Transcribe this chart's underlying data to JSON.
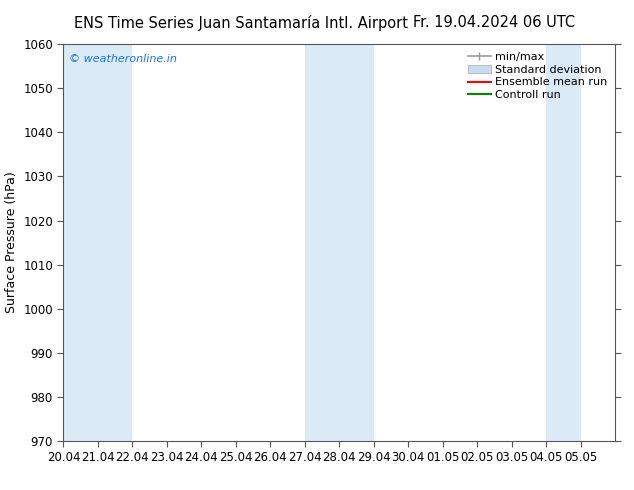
{
  "title_left": "ENS Time Series Juan Santamaría Intl. Airport",
  "title_right": "Fr. 19.04.2024 06 UTC",
  "ylabel": "Surface Pressure (hPa)",
  "ylim": [
    970,
    1060
  ],
  "yticks": [
    970,
    980,
    990,
    1000,
    1010,
    1020,
    1030,
    1040,
    1050,
    1060
  ],
  "xlim_left": 0,
  "xlim_right": 16,
  "xtick_labels": [
    "20.04",
    "21.04",
    "22.04",
    "23.04",
    "24.04",
    "25.04",
    "26.04",
    "27.04",
    "28.04",
    "29.04",
    "30.04",
    "01.05",
    "02.05",
    "03.05",
    "04.05",
    "05.05"
  ],
  "xtick_positions": [
    0,
    1,
    2,
    3,
    4,
    5,
    6,
    7,
    8,
    9,
    10,
    11,
    12,
    13,
    14,
    15
  ],
  "shaded_columns": [
    {
      "x_start": 0,
      "x_end": 1,
      "color": "#daeaf7"
    },
    {
      "x_start": 1,
      "x_end": 2,
      "color": "#daeaf7"
    },
    {
      "x_start": 7,
      "x_end": 8,
      "color": "#daeaf7"
    },
    {
      "x_start": 8,
      "x_end": 9,
      "color": "#daeaf7"
    },
    {
      "x_start": 14,
      "x_end": 15,
      "color": "#daeaf7"
    }
  ],
  "background_color": "#ffffff",
  "plot_bg_color": "#ffffff",
  "watermark_text": "© weatheronline.in",
  "watermark_color": "#1a73e8",
  "legend_minmax_color": "#999999",
  "legend_std_color": "#c8dcf0",
  "legend_ens_color": "#ff0000",
  "legend_ctrl_color": "#008800",
  "title_fontsize": 10.5,
  "axis_label_fontsize": 9,
  "tick_fontsize": 8.5,
  "legend_fontsize": 8,
  "spine_color": "#555555"
}
